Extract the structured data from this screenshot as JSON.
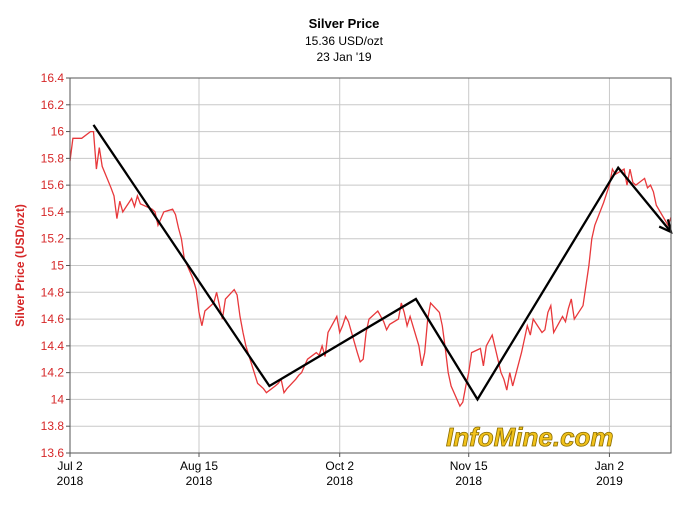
{
  "chart_data": {
    "type": "line",
    "title": "Silver Price",
    "subtitle_price": "15.36 USD/ozt",
    "subtitle_date": "23 Jan '19",
    "ylabel": "Silver Price (USD/ozt)",
    "xlabel": "",
    "ylim": [
      13.6,
      16.4
    ],
    "yticks": [
      13.6,
      13.8,
      14,
      14.2,
      14.4,
      14.6,
      14.8,
      15,
      15.2,
      15.4,
      15.6,
      15.8,
      16,
      16.2,
      16.4
    ],
    "ytick_labels": [
      "13.6",
      "13.8",
      "14",
      "14.2",
      "14.4",
      "14.6",
      "14.8",
      "15",
      "15.2",
      "15.4",
      "15.6",
      "15.8",
      "16",
      "16.2",
      "16.4"
    ],
    "xticks": [
      {
        "date": "2018-07-02",
        "line1": "Jul 2",
        "line2": "2018"
      },
      {
        "date": "2018-08-15",
        "line1": "Aug 15",
        "line2": "2018"
      },
      {
        "date": "2018-10-02",
        "line1": "Oct 2",
        "line2": "2018"
      },
      {
        "date": "2018-11-15",
        "line1": "Nov 15",
        "line2": "2018"
      },
      {
        "date": "2019-01-02",
        "line1": "Jan 2",
        "line2": "2019"
      }
    ],
    "xlim": [
      "2018-07-02",
      "2019-01-23"
    ],
    "grid": true,
    "series": [
      {
        "name": "",
        "color": "#e8383b",
        "points": [
          [
            "2018-07-02",
            15.78
          ],
          [
            "2018-07-03",
            15.95
          ],
          [
            "2018-07-05",
            15.95
          ],
          [
            "2018-07-06",
            15.95
          ],
          [
            "2018-07-09",
            16.0
          ],
          [
            "2018-07-10",
            16.0
          ],
          [
            "2018-07-11",
            15.72
          ],
          [
            "2018-07-12",
            15.88
          ],
          [
            "2018-07-13",
            15.74
          ],
          [
            "2018-07-16",
            15.58
          ],
          [
            "2018-07-17",
            15.52
          ],
          [
            "2018-07-18",
            15.35
          ],
          [
            "2018-07-19",
            15.48
          ],
          [
            "2018-07-20",
            15.4
          ],
          [
            "2018-07-23",
            15.5
          ],
          [
            "2018-07-24",
            15.44
          ],
          [
            "2018-07-25",
            15.52
          ],
          [
            "2018-07-26",
            15.46
          ],
          [
            "2018-07-27",
            15.45
          ],
          [
            "2018-07-30",
            15.42
          ],
          [
            "2018-07-31",
            15.4
          ],
          [
            "2018-08-01",
            15.3
          ],
          [
            "2018-08-02",
            15.35
          ],
          [
            "2018-08-03",
            15.4
          ],
          [
            "2018-08-06",
            15.42
          ],
          [
            "2018-08-07",
            15.38
          ],
          [
            "2018-08-08",
            15.28
          ],
          [
            "2018-08-09",
            15.2
          ],
          [
            "2018-08-10",
            15.05
          ],
          [
            "2018-08-13",
            14.9
          ],
          [
            "2018-08-14",
            14.82
          ],
          [
            "2018-08-15",
            14.65
          ],
          [
            "2018-08-16",
            14.55
          ],
          [
            "2018-08-17",
            14.66
          ],
          [
            "2018-08-20",
            14.72
          ],
          [
            "2018-08-21",
            14.8
          ],
          [
            "2018-08-22",
            14.7
          ],
          [
            "2018-08-23",
            14.6
          ],
          [
            "2018-08-24",
            14.75
          ],
          [
            "2018-08-27",
            14.82
          ],
          [
            "2018-08-28",
            14.78
          ],
          [
            "2018-08-29",
            14.62
          ],
          [
            "2018-08-30",
            14.5
          ],
          [
            "2018-08-31",
            14.4
          ],
          [
            "2018-09-04",
            14.12
          ],
          [
            "2018-09-05",
            14.1
          ],
          [
            "2018-09-06",
            14.08
          ],
          [
            "2018-09-07",
            14.05
          ],
          [
            "2018-09-10",
            14.1
          ],
          [
            "2018-09-11",
            14.12
          ],
          [
            "2018-09-12",
            14.15
          ],
          [
            "2018-09-13",
            14.05
          ],
          [
            "2018-09-14",
            14.08
          ],
          [
            "2018-09-17",
            14.15
          ],
          [
            "2018-09-18",
            14.18
          ],
          [
            "2018-09-19",
            14.2
          ],
          [
            "2018-09-20",
            14.25
          ],
          [
            "2018-09-21",
            14.3
          ],
          [
            "2018-09-24",
            14.35
          ],
          [
            "2018-09-25",
            14.33
          ],
          [
            "2018-09-26",
            14.4
          ],
          [
            "2018-09-27",
            14.32
          ],
          [
            "2018-09-28",
            14.5
          ],
          [
            "2018-10-01",
            14.62
          ],
          [
            "2018-10-02",
            14.5
          ],
          [
            "2018-10-03",
            14.55
          ],
          [
            "2018-10-04",
            14.62
          ],
          [
            "2018-10-05",
            14.58
          ],
          [
            "2018-10-08",
            14.35
          ],
          [
            "2018-10-09",
            14.28
          ],
          [
            "2018-10-10",
            14.3
          ],
          [
            "2018-10-11",
            14.5
          ],
          [
            "2018-10-12",
            14.6
          ],
          [
            "2018-10-15",
            14.66
          ],
          [
            "2018-10-16",
            14.62
          ],
          [
            "2018-10-17",
            14.58
          ],
          [
            "2018-10-18",
            14.52
          ],
          [
            "2018-10-19",
            14.56
          ],
          [
            "2018-10-22",
            14.6
          ],
          [
            "2018-10-23",
            14.72
          ],
          [
            "2018-10-24",
            14.65
          ],
          [
            "2018-10-25",
            14.55
          ],
          [
            "2018-10-26",
            14.62
          ],
          [
            "2018-10-29",
            14.4
          ],
          [
            "2018-10-30",
            14.25
          ],
          [
            "2018-10-31",
            14.35
          ],
          [
            "2018-11-01",
            14.6
          ],
          [
            "2018-11-02",
            14.72
          ],
          [
            "2018-11-05",
            14.65
          ],
          [
            "2018-11-06",
            14.55
          ],
          [
            "2018-11-07",
            14.38
          ],
          [
            "2018-11-08",
            14.2
          ],
          [
            "2018-11-09",
            14.1
          ],
          [
            "2018-11-12",
            13.95
          ],
          [
            "2018-11-13",
            13.98
          ],
          [
            "2018-11-14",
            14.1
          ],
          [
            "2018-11-15",
            14.2
          ],
          [
            "2018-11-16",
            14.35
          ],
          [
            "2018-11-19",
            14.38
          ],
          [
            "2018-11-20",
            14.25
          ],
          [
            "2018-11-21",
            14.4
          ],
          [
            "2018-11-23",
            14.48
          ],
          [
            "2018-11-26",
            14.2
          ],
          [
            "2018-11-27",
            14.15
          ],
          [
            "2018-11-28",
            14.07
          ],
          [
            "2018-11-29",
            14.2
          ],
          [
            "2018-11-30",
            14.1
          ],
          [
            "2018-12-03",
            14.35
          ],
          [
            "2018-12-04",
            14.45
          ],
          [
            "2018-12-05",
            14.55
          ],
          [
            "2018-12-06",
            14.48
          ],
          [
            "2018-12-07",
            14.6
          ],
          [
            "2018-12-10",
            14.5
          ],
          [
            "2018-12-11",
            14.52
          ],
          [
            "2018-12-12",
            14.65
          ],
          [
            "2018-12-13",
            14.7
          ],
          [
            "2018-12-14",
            14.5
          ],
          [
            "2018-12-17",
            14.62
          ],
          [
            "2018-12-18",
            14.58
          ],
          [
            "2018-12-19",
            14.68
          ],
          [
            "2018-12-20",
            14.75
          ],
          [
            "2018-12-21",
            14.6
          ],
          [
            "2018-12-24",
            14.7
          ],
          [
            "2018-12-26",
            15.0
          ],
          [
            "2018-12-27",
            15.2
          ],
          [
            "2018-12-28",
            15.3
          ],
          [
            "2018-12-31",
            15.47
          ],
          [
            "2019-01-02",
            15.6
          ],
          [
            "2019-01-03",
            15.72
          ],
          [
            "2019-01-04",
            15.68
          ],
          [
            "2019-01-07",
            15.72
          ],
          [
            "2019-01-08",
            15.6
          ],
          [
            "2019-01-09",
            15.72
          ],
          [
            "2019-01-10",
            15.62
          ],
          [
            "2019-01-11",
            15.6
          ],
          [
            "2019-01-14",
            15.65
          ],
          [
            "2019-01-15",
            15.58
          ],
          [
            "2019-01-16",
            15.6
          ],
          [
            "2019-01-17",
            15.55
          ],
          [
            "2019-01-18",
            15.45
          ],
          [
            "2019-01-22",
            15.3
          ],
          [
            "2019-01-23",
            15.36
          ]
        ]
      }
    ],
    "annotations": {
      "trend_line": {
        "color": "#000000",
        "points": [
          [
            "2018-07-10",
            16.05
          ],
          [
            "2018-09-08",
            14.1
          ],
          [
            "2018-10-28",
            14.75
          ],
          [
            "2018-11-18",
            14.0
          ],
          [
            "2019-01-05",
            15.73
          ],
          [
            "2019-01-23",
            15.25
          ]
        ],
        "arrow_end": true
      }
    },
    "watermark": "InfoMine.com"
  }
}
